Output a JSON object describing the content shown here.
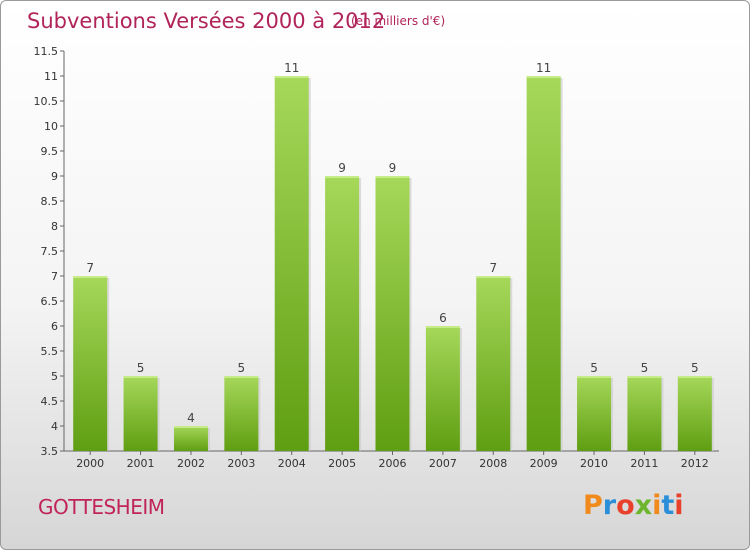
{
  "header": {
    "title": "Subventions Versées 2000 à 2012",
    "unit": "(en milliers d'€)"
  },
  "commune": "GOTTESHEIM",
  "logo": {
    "text": "Proxiti",
    "colors": [
      "#f08a1c",
      "#2a8fd8",
      "#e8402a",
      "#6cb52d",
      "#f08a1c",
      "#2a8fd8",
      "#e8402a"
    ]
  },
  "colors": {
    "bar_light": "#a6d85a",
    "bar_dark": "#5f9e12",
    "accent": "#b0245a"
  },
  "chart_data": {
    "type": "bar",
    "title": "Subventions Versées 2000 à 2012",
    "subtitle": "(en milliers d'€)",
    "categories": [
      "2000",
      "2001",
      "2002",
      "2003",
      "2004",
      "2005",
      "2006",
      "2007",
      "2008",
      "2009",
      "2010",
      "2011",
      "2012"
    ],
    "values": [
      7,
      5,
      4,
      5,
      11,
      9,
      9,
      6,
      7,
      11,
      5,
      5,
      5
    ],
    "ylim": [
      3.5,
      11.5
    ],
    "yticks": [
      "3.5",
      "4",
      "4.5",
      "5",
      "5.5",
      "6",
      "6.5",
      "7",
      "7.5",
      "8",
      "8.5",
      "9",
      "9.5",
      "10",
      "10.5",
      "11",
      "11.5"
    ],
    "grid": false,
    "legend": "none"
  }
}
